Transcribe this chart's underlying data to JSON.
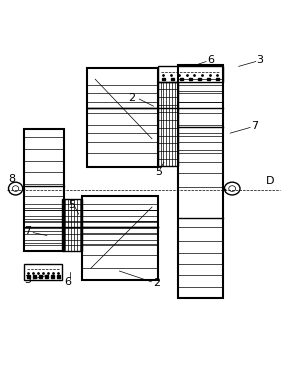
{
  "bg_color": "#ffffff",
  "line_color": "#000000",
  "label_color": "#000000",
  "fig_width": 2.87,
  "fig_height": 3.8,
  "dpi": 100
}
